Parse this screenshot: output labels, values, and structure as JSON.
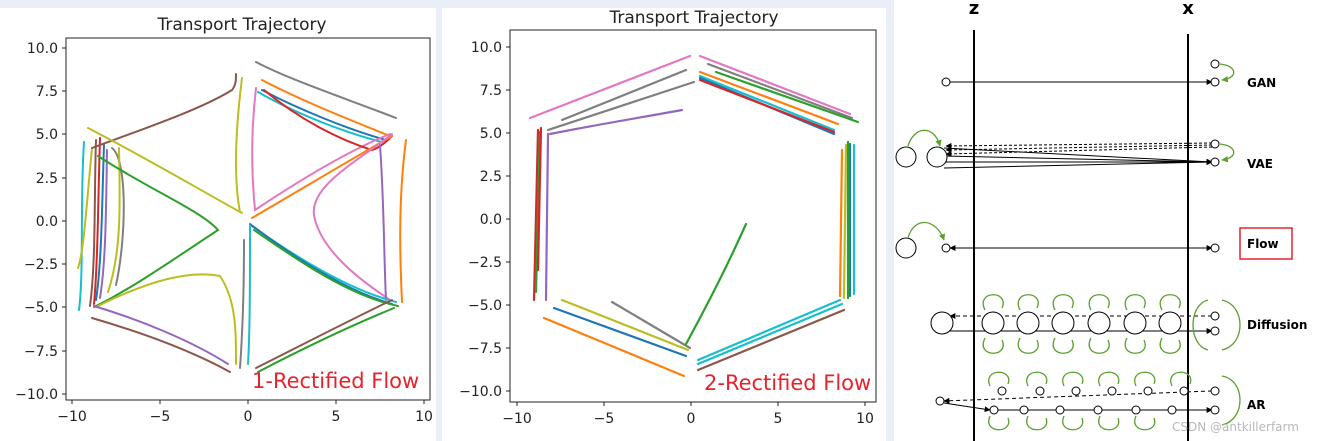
{
  "panels": [
    {
      "title": "Transport Trajectory",
      "overlay_label": "1-Rectified Flow",
      "x_ticks": [
        "−10",
        "−5",
        "0",
        "5",
        "10"
      ],
      "y_ticks": [
        "10.0",
        "7.5",
        "5.0",
        "2.5",
        "0.0",
        "−2.5",
        "−5.0",
        "−7.5",
        "−10.0"
      ]
    },
    {
      "title": "Transport Trajectory",
      "overlay_label": "2-Rectified Flow",
      "x_ticks": [
        "−10",
        "−5",
        "0",
        "5",
        "10"
      ],
      "y_ticks": [
        "10.0",
        "7.5",
        "5.0",
        "2.5",
        "0.0",
        "−2.5",
        "−5.0",
        "−7.5",
        "−10.0"
      ]
    }
  ],
  "diagram": {
    "axis_z": "z",
    "axis_x": "x",
    "rows": [
      "GAN",
      "VAE",
      "Flow",
      "Diffusion",
      "AR"
    ],
    "highlighted_row": "Flow",
    "watermark": "CSDN @antkillerfarm"
  },
  "colors": {
    "palette": [
      "#1f77b4",
      "#ff7f0e",
      "#2ca02c",
      "#d62728",
      "#9467bd",
      "#8c564b",
      "#e377c2",
      "#7f7f7f",
      "#bcbd22",
      "#17becf"
    ],
    "highlight_red": "#e8222a",
    "diagram_green": "#5aa02c"
  }
}
